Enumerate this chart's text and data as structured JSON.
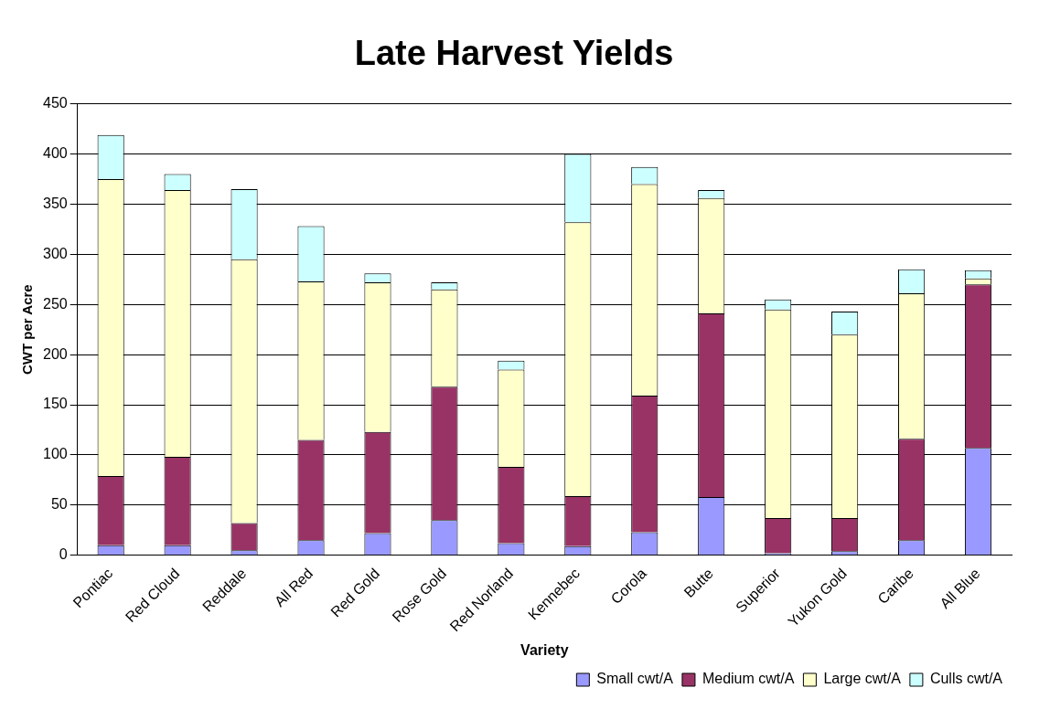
{
  "chart_data": {
    "type": "bar",
    "title": "Late Harvest Yields",
    "xlabel": "Variety",
    "ylabel": "CWT per Acre",
    "categories": [
      "Pontiac",
      "Red Cloud",
      "Reddale",
      "All Red",
      "Red Gold",
      "Rose Gold",
      "Red Norland",
      "Kennebec",
      "Corola",
      "Butte",
      "Superior",
      "Yukon Gold",
      "Caribe",
      "All Blue"
    ],
    "series": [
      {
        "name": "Small cwt/A",
        "color": "#9999ff",
        "values": [
          10,
          10,
          5,
          15,
          22,
          35,
          12,
          9,
          23,
          58,
          2,
          4,
          15,
          107
        ]
      },
      {
        "name": "Medium cwt/A",
        "color": "#993366",
        "values": [
          69,
          88,
          27,
          100,
          101,
          133,
          76,
          50,
          136,
          183,
          35,
          33,
          101,
          163
        ]
      },
      {
        "name": "Large cwt/A",
        "color": "#ffffcc",
        "values": [
          296,
          266,
          263,
          158,
          149,
          97,
          97,
          273,
          211,
          115,
          208,
          183,
          145,
          6
        ]
      },
      {
        "name": "Culls cwt/A",
        "color": "#ccffff",
        "values": [
          44,
          16,
          70,
          55,
          9,
          7,
          9,
          68,
          17,
          8,
          10,
          23,
          24,
          8
        ]
      }
    ],
    "stacked": true,
    "ylim": [
      0,
      450
    ],
    "yticks": [
      0,
      50,
      100,
      150,
      200,
      250,
      300,
      350,
      400,
      450
    ],
    "grid": "y",
    "legend": "bottom right"
  }
}
